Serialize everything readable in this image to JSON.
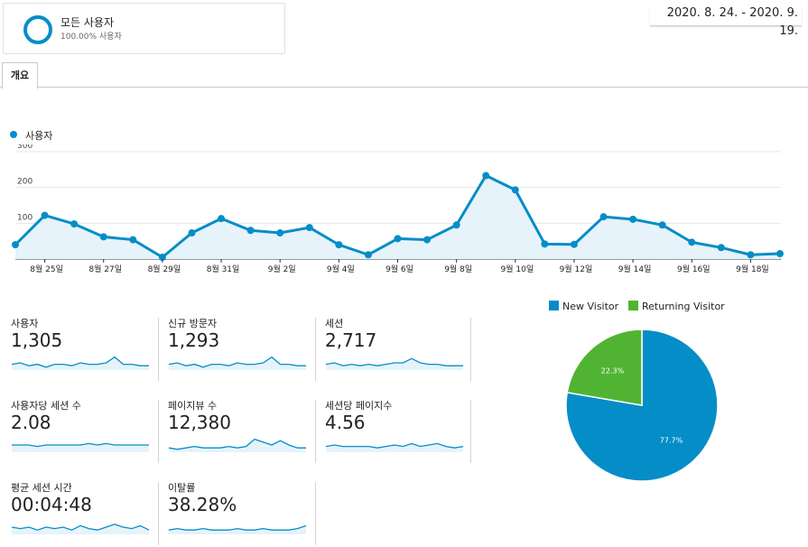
{
  "segment": {
    "title": "모든 사용자",
    "subtitle": "100.00% 사용자"
  },
  "date_range": "2020. 8. 24. - 2020. 9. 19.",
  "tabs": [
    {
      "label": "개요"
    }
  ],
  "colors": {
    "primary": "#058dc7",
    "secondary": "#50b432",
    "fill": "#e6f3fa",
    "grid": "#e6e6e6"
  },
  "chart_data": {
    "type": "area",
    "series": [
      {
        "name": "사용자",
        "x": [
          "8월 24일",
          "8월 25일",
          "8월 26일",
          "8월 27일",
          "8월 28일",
          "8월 29일",
          "8월 30일",
          "8월 31일",
          "9월 1일",
          "9월 2일",
          "9월 3일",
          "9월 4일",
          "9월 5일",
          "9월 6일",
          "9월 7일",
          "9월 8일",
          "9월 9일",
          "9월 10일",
          "9월 11일",
          "9월 12일",
          "9월 13일",
          "9월 14일",
          "9월 15일",
          "9월 16일",
          "9월 17일",
          "9월 18일",
          "9월 19일"
        ],
        "values": [
          40,
          122,
          98,
          62,
          54,
          5,
          73,
          113,
          80,
          73,
          88,
          40,
          12,
          57,
          54,
          95,
          233,
          193,
          42,
          41,
          118,
          111,
          95,
          47,
          32,
          12,
          15
        ]
      }
    ],
    "xticks": [
      "8월 25일",
      "8월 27일",
      "8월 29일",
      "8월 31일",
      "9월 2일",
      "9월 4일",
      "9월 6일",
      "9월 8일",
      "9월 10일",
      "9월 12일",
      "9월 14일",
      "9월 16일",
      "9월 18일"
    ],
    "yticks": [
      100,
      200,
      300
    ],
    "ylim": [
      0,
      320
    ],
    "grid": true
  },
  "metrics": [
    {
      "label": "사용자",
      "value": "1,305",
      "spark": [
        4,
        5,
        3,
        4,
        2,
        4,
        4,
        3,
        5,
        4,
        4,
        5,
        9,
        4,
        4,
        3,
        3
      ]
    },
    {
      "label": "신규 방문자",
      "value": "1,293",
      "spark": [
        4,
        5,
        3,
        4,
        2,
        4,
        4,
        3,
        5,
        4,
        4,
        5,
        9,
        4,
        4,
        3,
        3
      ]
    },
    {
      "label": "세션",
      "value": "2,717",
      "spark": [
        4,
        5,
        3,
        4,
        3,
        4,
        3,
        4,
        5,
        5,
        8,
        5,
        4,
        4,
        3,
        3,
        3
      ]
    },
    {
      "label": "사용자당 세션 수",
      "value": "2.08",
      "spark": [
        5,
        5,
        5,
        4,
        5,
        5,
        5,
        5,
        5,
        6,
        5,
        6,
        5,
        5,
        5,
        5,
        5
      ]
    },
    {
      "label": "페이지뷰 수",
      "value": "12,380",
      "spark": [
        3,
        2,
        3,
        4,
        3,
        3,
        3,
        4,
        3,
        4,
        9,
        7,
        5,
        8,
        5,
        3,
        3
      ]
    },
    {
      "label": "세션당 페이지수",
      "value": "4.56",
      "spark": [
        4,
        5,
        4,
        4,
        4,
        4,
        3,
        4,
        5,
        4,
        6,
        4,
        5,
        6,
        4,
        3,
        4
      ]
    },
    {
      "label": "평균 세션 시간",
      "value": "00:04:48",
      "spark": [
        5,
        4,
        5,
        3,
        5,
        4,
        5,
        3,
        6,
        4,
        3,
        5,
        7,
        5,
        4,
        6,
        3
      ]
    },
    {
      "label": "이탈률",
      "value": "38.28%",
      "spark": [
        3,
        4,
        3,
        3,
        4,
        3,
        3,
        3,
        4,
        3,
        3,
        4,
        3,
        3,
        3,
        4,
        6
      ]
    }
  ],
  "pie_chart": {
    "type": "pie",
    "slices": [
      {
        "name": "New Visitor",
        "value": 77.7,
        "label": "77.7%",
        "color": "#058dc7"
      },
      {
        "name": "Returning Visitor",
        "value": 22.3,
        "label": "22.3%",
        "color": "#50b432"
      }
    ]
  }
}
